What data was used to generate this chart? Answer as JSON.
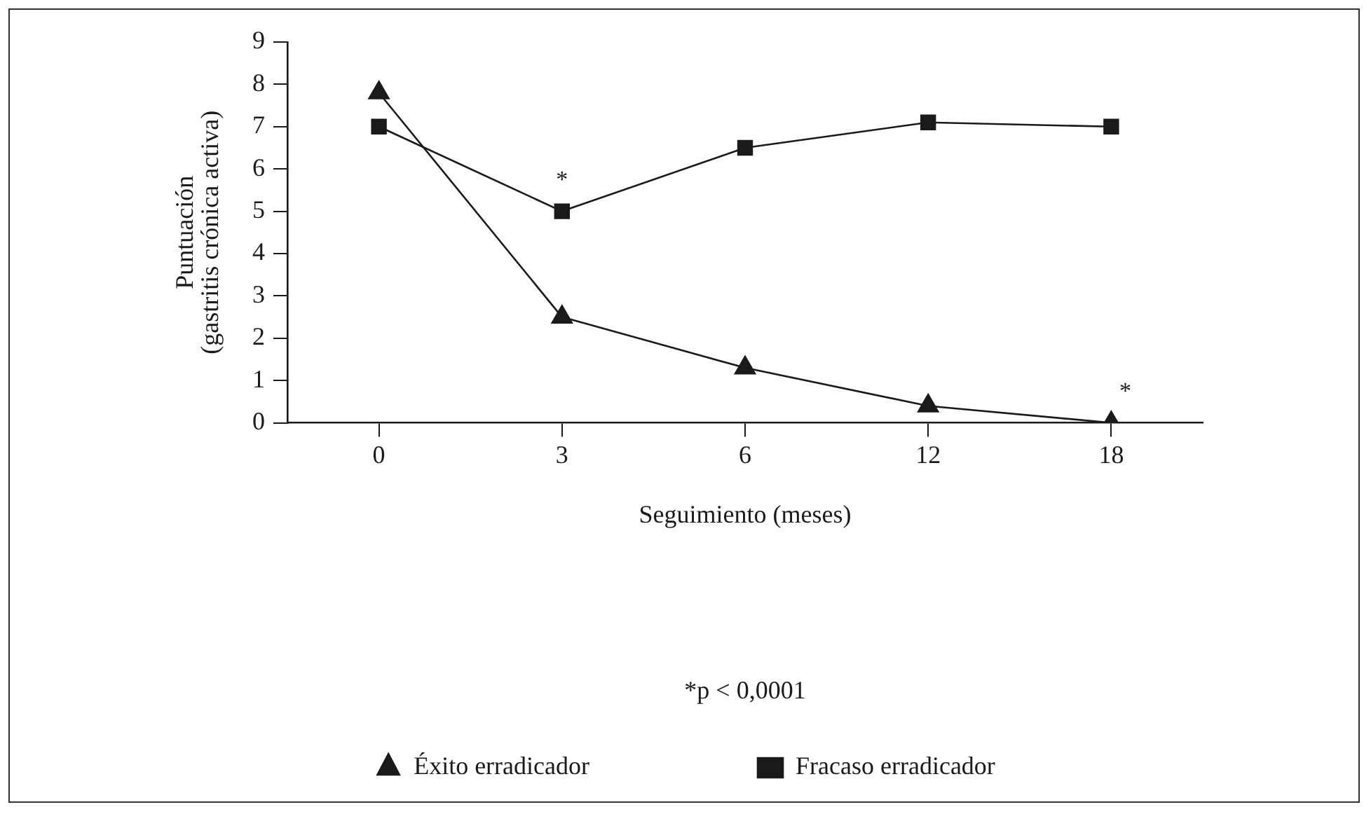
{
  "chart_data": {
    "type": "line",
    "xlabel": "Seguimiento (meses)",
    "ylabel": "Puntuación\n(gastritis crónica activa)",
    "categories": [
      "0",
      "3",
      "6",
      "12",
      "18"
    ],
    "series": [
      {
        "name": "Éxito erradicador",
        "color": "#1a1a1a",
        "marker": "triangle",
        "values": [
          7.8,
          2.5,
          1.3,
          0.4,
          0
        ]
      },
      {
        "name": "Fracaso erradicador",
        "color": "#1a1a1a",
        "marker": "square",
        "values": [
          7.0,
          5.0,
          6.5,
          7.1,
          7.0
        ]
      }
    ],
    "ylim": [
      0,
      9
    ],
    "yticks": [
      0,
      1,
      2,
      3,
      4,
      5,
      6,
      7,
      8,
      9
    ],
    "grid": false,
    "legend": "bottom",
    "line_style": "solid",
    "annotations": [
      {
        "text": "*",
        "x": "3",
        "y": 5.0
      },
      {
        "text": "*",
        "x": "18",
        "y": 0
      },
      "*p < 0,0001"
    ]
  }
}
